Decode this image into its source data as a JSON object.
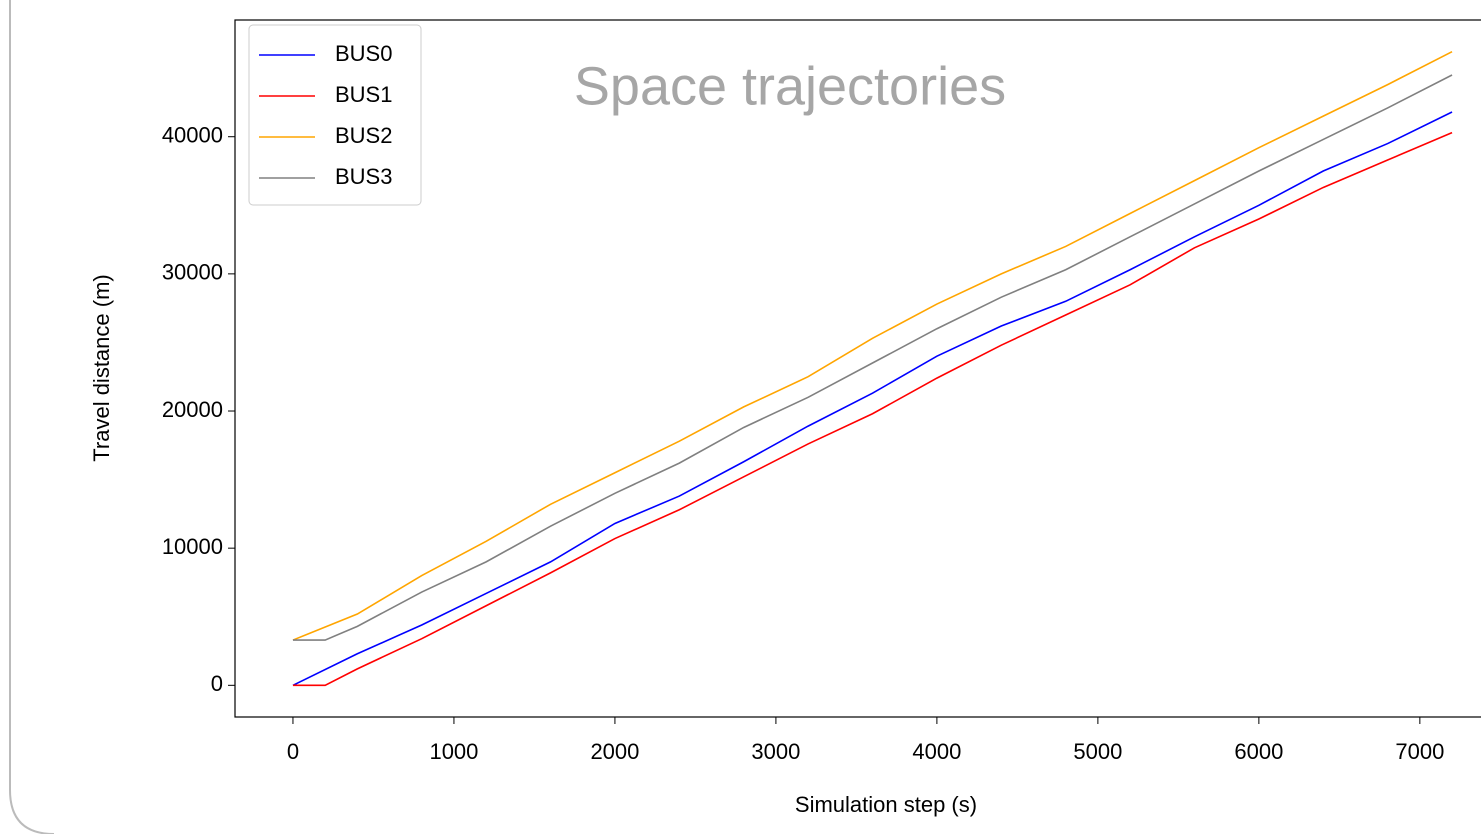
{
  "chart_data": {
    "type": "line",
    "title": "Space trajectories",
    "xlabel": "Simulation step (s)",
    "ylabel": "Travel distance (m)",
    "xlim": [
      -360,
      7560
    ],
    "xticks": [
      0,
      1000,
      2000,
      3000,
      4000,
      5000,
      6000,
      7000
    ],
    "ylim": [
      -2310,
      48510
    ],
    "yticks": [
      0,
      10000,
      20000,
      30000,
      40000
    ],
    "legend": "upper left",
    "series": [
      {
        "name": "BUS0",
        "color": "#0000ff",
        "x": [
          0,
          400,
          800,
          1200,
          1600,
          2000,
          2400,
          2800,
          3200,
          3600,
          4000,
          4400,
          4800,
          5200,
          5600,
          6000,
          6400,
          6800,
          7200
        ],
        "values": [
          0,
          2300,
          4400,
          6700,
          9000,
          11800,
          13800,
          16300,
          18900,
          21300,
          24000,
          26200,
          28000,
          30300,
          32700,
          35000,
          37500,
          39500,
          41800
        ]
      },
      {
        "name": "BUS1",
        "color": "#ff0000",
        "x": [
          0,
          200,
          400,
          800,
          1200,
          1600,
          2000,
          2400,
          2800,
          3200,
          3600,
          4000,
          4400,
          4800,
          5200,
          5600,
          6000,
          6400,
          6800,
          7200
        ],
        "values": [
          0,
          0,
          1200,
          3400,
          5800,
          8200,
          10700,
          12800,
          15200,
          17600,
          19800,
          22400,
          24800,
          27000,
          29200,
          31900,
          34000,
          36300,
          38300,
          40300
        ]
      },
      {
        "name": "BUS2",
        "color": "#ffa500",
        "x": [
          0,
          400,
          800,
          1200,
          1600,
          2000,
          2400,
          2800,
          3200,
          3600,
          4000,
          4400,
          4800,
          5200,
          5600,
          6000,
          6400,
          6800,
          7200
        ],
        "values": [
          3300,
          5200,
          8000,
          10500,
          13200,
          15500,
          17800,
          20300,
          22500,
          25300,
          27800,
          30000,
          32000,
          34400,
          36800,
          39200,
          41500,
          43800,
          46200
        ]
      },
      {
        "name": "BUS3",
        "color": "#808080",
        "x": [
          0,
          200,
          400,
          800,
          1200,
          1600,
          2000,
          2400,
          2800,
          3200,
          3600,
          4000,
          4400,
          4800,
          5200,
          5600,
          6000,
          6400,
          6800,
          7200
        ],
        "values": [
          3300,
          3300,
          4300,
          6800,
          9000,
          11600,
          14000,
          16200,
          18800,
          21000,
          23500,
          26000,
          28300,
          30300,
          32700,
          35100,
          37500,
          39800,
          42100,
          44500
        ]
      }
    ]
  }
}
